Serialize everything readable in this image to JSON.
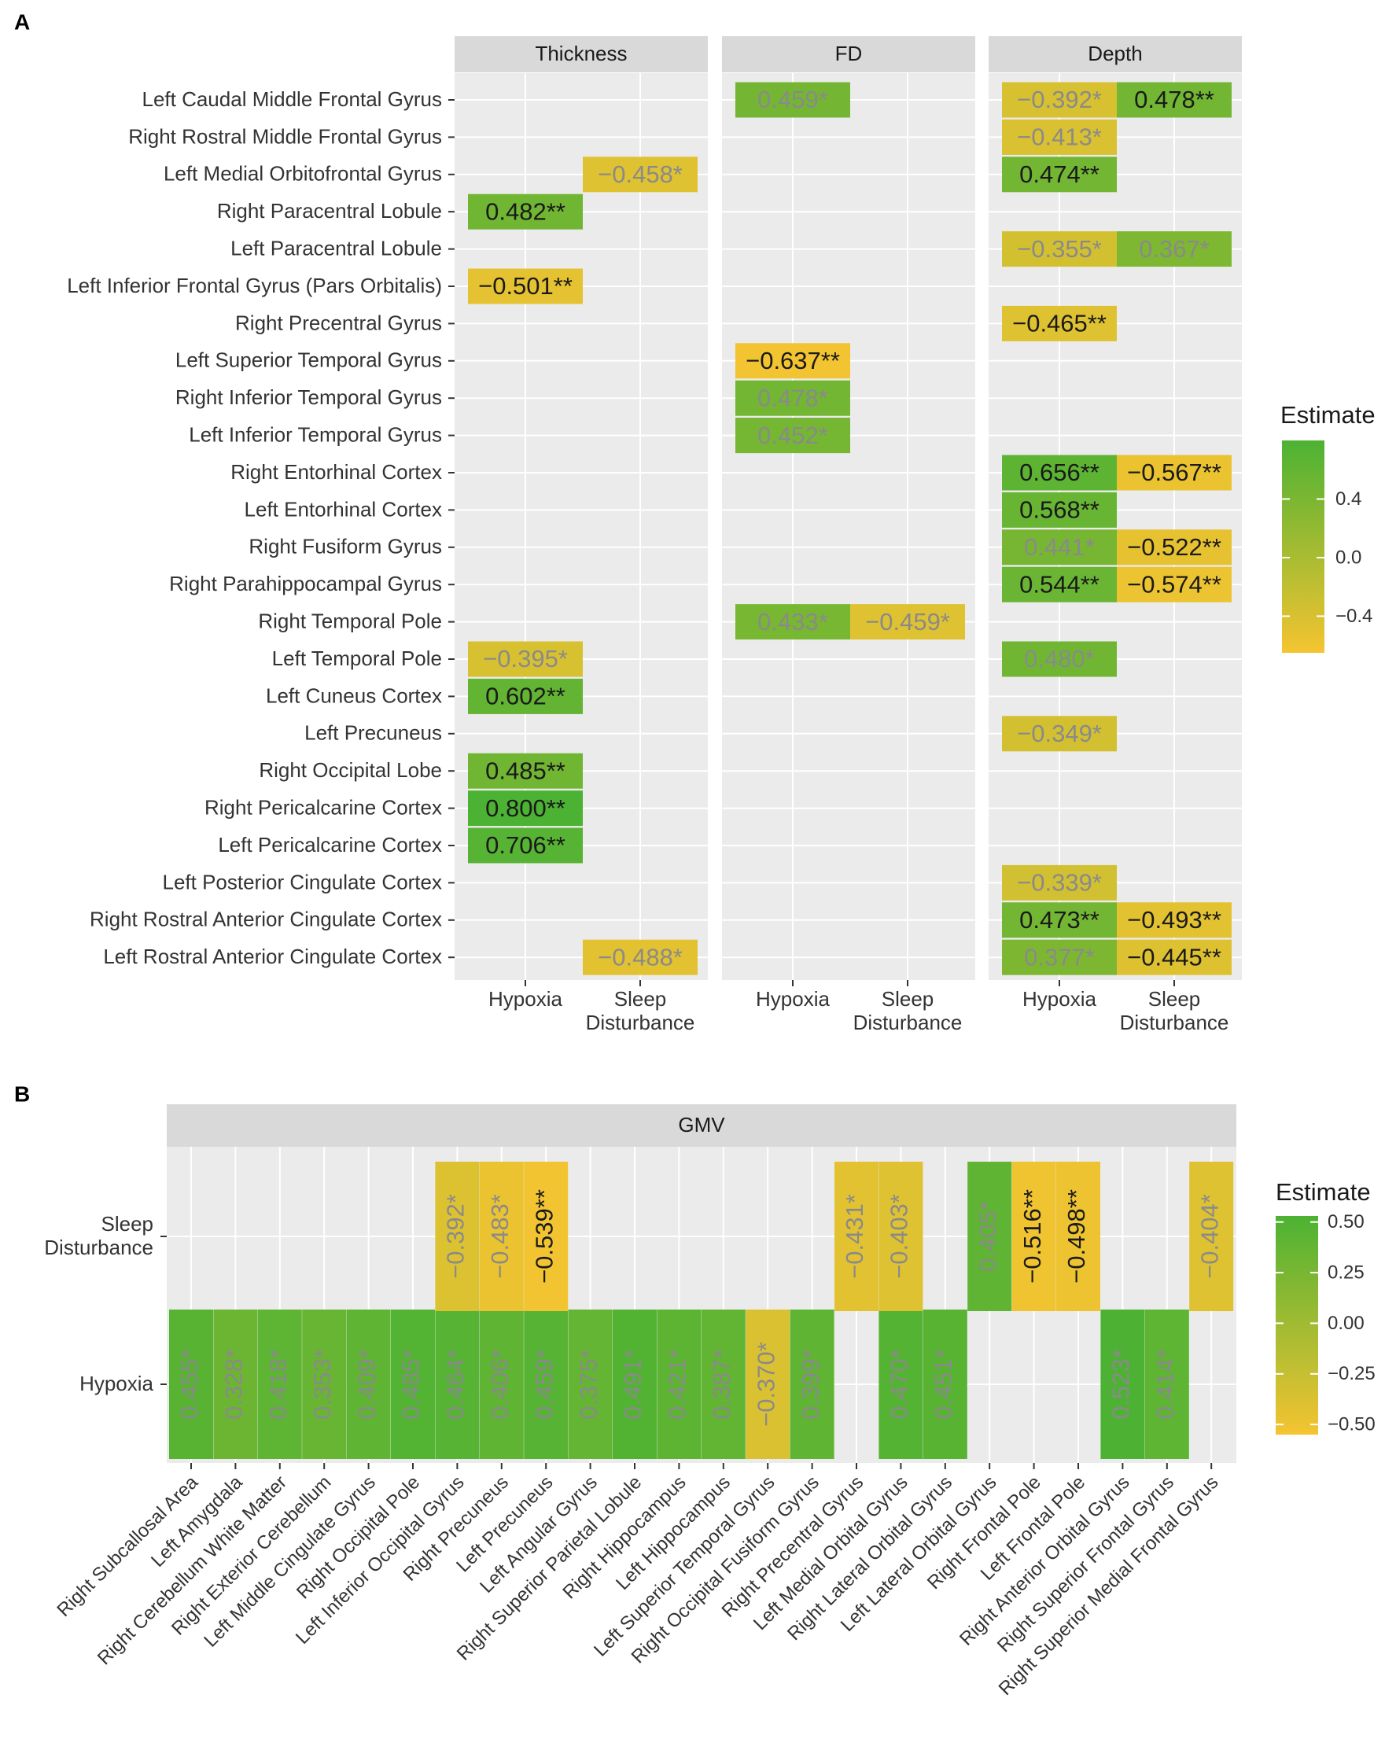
{
  "chart_data": [
    {
      "type": "heatmap",
      "panel_letter": "A",
      "facets": [
        "Thickness",
        "FD",
        "Depth"
      ],
      "x_categories": [
        "Hypoxia",
        "Sleep Disturbance"
      ],
      "x_tick_lines": [
        [
          "Hypoxia"
        ],
        [
          "Sleep",
          "Disturbance"
        ]
      ],
      "y_categories": [
        "Left Caudal Middle Frontal Gyrus",
        "Right Rostral Middle Frontal Gyrus",
        "Left Medial Orbitofrontal Gyrus",
        "Right Paracentral Lobule",
        "Left Paracentral Lobule",
        "Left Inferior Frontal Gyrus (Pars Orbitalis)",
        "Right Precentral Gyrus",
        "Left Superior Temporal Gyrus",
        "Right Inferior Temporal Gyrus",
        "Left Inferior Temporal Gyrus",
        "Right Entorhinal Cortex",
        "Left Entorhinal Cortex",
        "Right Fusiform Gyrus",
        "Right Parahippocampal Gyrus",
        "Right Temporal Pole",
        "Left Temporal Pole",
        "Left Cuneus Cortex",
        "Left Precuneus",
        "Right Occipital Lobe",
        "Right Pericalcarine Cortex",
        "Left Pericalcarine Cortex",
        "Left Posterior Cingulate Cortex",
        "Right Rostral Anterior Cingulate Cortex",
        "Left Rostral Anterior Cingulate Cortex"
      ],
      "cells": [
        {
          "facet": "Thickness",
          "x": "Hypoxia",
          "y": "Right Paracentral Lobule",
          "value": 0.482,
          "label": "0.482**"
        },
        {
          "facet": "Thickness",
          "x": "Hypoxia",
          "y": "Left Inferior Frontal Gyrus (Pars Orbitalis)",
          "value": -0.501,
          "label": "−0.501**"
        },
        {
          "facet": "Thickness",
          "x": "Hypoxia",
          "y": "Left Temporal Pole",
          "value": -0.395,
          "label": "−0.395*"
        },
        {
          "facet": "Thickness",
          "x": "Hypoxia",
          "y": "Left Cuneus Cortex",
          "value": 0.602,
          "label": "0.602**"
        },
        {
          "facet": "Thickness",
          "x": "Hypoxia",
          "y": "Right Occipital Lobe",
          "value": 0.485,
          "label": "0.485**"
        },
        {
          "facet": "Thickness",
          "x": "Hypoxia",
          "y": "Right Pericalcarine Cortex",
          "value": 0.8,
          "label": "0.800**"
        },
        {
          "facet": "Thickness",
          "x": "Hypoxia",
          "y": "Left Pericalcarine Cortex",
          "value": 0.706,
          "label": "0.706**"
        },
        {
          "facet": "Thickness",
          "x": "Sleep Disturbance",
          "y": "Left Medial Orbitofrontal Gyrus",
          "value": -0.458,
          "label": "−0.458*"
        },
        {
          "facet": "Thickness",
          "x": "Sleep Disturbance",
          "y": "Left Rostral Anterior Cingulate Cortex",
          "value": -0.488,
          "label": "−0.488*"
        },
        {
          "facet": "FD",
          "x": "Hypoxia",
          "y": "Left Caudal Middle Frontal Gyrus",
          "value": 0.459,
          "label": "0.459*"
        },
        {
          "facet": "FD",
          "x": "Hypoxia",
          "y": "Left Superior Temporal Gyrus",
          "value": -0.637,
          "label": "−0.637**"
        },
        {
          "facet": "FD",
          "x": "Hypoxia",
          "y": "Right Inferior Temporal Gyrus",
          "value": 0.478,
          "label": "0.478*"
        },
        {
          "facet": "FD",
          "x": "Hypoxia",
          "y": "Left Inferior Temporal Gyrus",
          "value": 0.452,
          "label": "0.452*"
        },
        {
          "facet": "FD",
          "x": "Hypoxia",
          "y": "Right Temporal Pole",
          "value": 0.433,
          "label": "0.433*"
        },
        {
          "facet": "FD",
          "x": "Sleep Disturbance",
          "y": "Right Temporal Pole",
          "value": -0.459,
          "label": "−0.459*"
        },
        {
          "facet": "Depth",
          "x": "Hypoxia",
          "y": "Left Caudal Middle Frontal Gyrus",
          "value": -0.392,
          "label": "−0.392*"
        },
        {
          "facet": "Depth",
          "x": "Hypoxia",
          "y": "Right Rostral Middle Frontal Gyrus",
          "value": -0.413,
          "label": "−0.413*"
        },
        {
          "facet": "Depth",
          "x": "Hypoxia",
          "y": "Left Medial Orbitofrontal Gyrus",
          "value": 0.474,
          "label": "0.474**"
        },
        {
          "facet": "Depth",
          "x": "Hypoxia",
          "y": "Left Paracentral Lobule",
          "value": -0.355,
          "label": "−0.355*"
        },
        {
          "facet": "Depth",
          "x": "Hypoxia",
          "y": "Right Precentral Gyrus",
          "value": -0.465,
          "label": "−0.465**"
        },
        {
          "facet": "Depth",
          "x": "Hypoxia",
          "y": "Right Entorhinal Cortex",
          "value": 0.656,
          "label": "0.656**"
        },
        {
          "facet": "Depth",
          "x": "Hypoxia",
          "y": "Left Entorhinal Cortex",
          "value": 0.568,
          "label": "0.568**"
        },
        {
          "facet": "Depth",
          "x": "Hypoxia",
          "y": "Right Fusiform Gyrus",
          "value": 0.441,
          "label": "0.441*"
        },
        {
          "facet": "Depth",
          "x": "Hypoxia",
          "y": "Right Parahippocampal Gyrus",
          "value": 0.544,
          "label": "0.544**"
        },
        {
          "facet": "Depth",
          "x": "Hypoxia",
          "y": "Left Temporal Pole",
          "value": 0.48,
          "label": "0.480*"
        },
        {
          "facet": "Depth",
          "x": "Hypoxia",
          "y": "Left Precuneus",
          "value": -0.349,
          "label": "−0.349*"
        },
        {
          "facet": "Depth",
          "x": "Hypoxia",
          "y": "Left Posterior Cingulate Cortex",
          "value": -0.339,
          "label": "−0.339*"
        },
        {
          "facet": "Depth",
          "x": "Hypoxia",
          "y": "Right Rostral Anterior Cingulate Cortex",
          "value": 0.473,
          "label": "0.473**"
        },
        {
          "facet": "Depth",
          "x": "Hypoxia",
          "y": "Left Rostral Anterior Cingulate Cortex",
          "value": 0.377,
          "label": "0.377*"
        },
        {
          "facet": "Depth",
          "x": "Sleep Disturbance",
          "y": "Left Caudal Middle Frontal Gyrus",
          "value": 0.478,
          "label": "0.478**"
        },
        {
          "facet": "Depth",
          "x": "Sleep Disturbance",
          "y": "Left Paracentral Lobule",
          "value": 0.367,
          "label": "0.367*"
        },
        {
          "facet": "Depth",
          "x": "Sleep Disturbance",
          "y": "Right Entorhinal Cortex",
          "value": -0.567,
          "label": "−0.567**"
        },
        {
          "facet": "Depth",
          "x": "Sleep Disturbance",
          "y": "Right Fusiform Gyrus",
          "value": -0.522,
          "label": "−0.522**"
        },
        {
          "facet": "Depth",
          "x": "Sleep Disturbance",
          "y": "Right Parahippocampal Gyrus",
          "value": -0.574,
          "label": "−0.574**"
        },
        {
          "facet": "Depth",
          "x": "Sleep Disturbance",
          "y": "Right Rostral Anterior Cingulate Cortex",
          "value": -0.493,
          "label": "−0.493**"
        },
        {
          "facet": "Depth",
          "x": "Sleep Disturbance",
          "y": "Left Rostral Anterior Cingulate Cortex",
          "value": -0.445,
          "label": "−0.445**"
        }
      ],
      "legend": {
        "title": "Estimate",
        "ticks": [
          0.4,
          0.0,
          -0.4
        ],
        "tick_labels": [
          "0.4",
          "0.0",
          "−0.4"
        ],
        "range": [
          -0.65,
          0.8
        ]
      }
    },
    {
      "type": "heatmap",
      "panel_letter": "B",
      "facets": [
        "GMV"
      ],
      "y_categories": [
        "Sleep Disturbance",
        "Hypoxia"
      ],
      "y_tick_lines": [
        [
          "Sleep",
          "Disturbance"
        ],
        [
          "Hypoxia"
        ]
      ],
      "x_categories": [
        "Right Subcallosal Area",
        "Left Amygdala",
        "Right Cerebellum White Matter",
        "Right Exterior Cerebellum",
        "Left Middle Cingulate Gyrus",
        "Right Occipital Pole",
        "Left Inferior Occipital Gyrus",
        "Right Precuneus",
        "Left Precuneus",
        "Left Angular Gyrus",
        "Right Superior Parietal Lobule",
        "Right Hippocampus",
        "Left Hippocampus",
        "Left Superior Temporal Gyrus",
        "Right Occipital Fusiform Gyrus",
        "Right Precentral Gyrus",
        "Left Medial Orbital Gyrus",
        "Right Lateral Orbital Gyrus",
        "Left Lateral Orbital Gyrus",
        "Right Frontal Pole",
        "Left Frontal Pole",
        "Right Anterior Orbital Gyrus",
        "Right Superior Frontal Gyrus",
        "Right Superior Medial Frontal Gyrus"
      ],
      "cells": [
        {
          "x": "Right Subcallosal Area",
          "y": "Hypoxia",
          "value": 0.455,
          "label": "0.455*"
        },
        {
          "x": "Left Amygdala",
          "y": "Hypoxia",
          "value": 0.328,
          "label": "0.328*"
        },
        {
          "x": "Right Cerebellum White Matter",
          "y": "Hypoxia",
          "value": 0.418,
          "label": "0.418*"
        },
        {
          "x": "Right Exterior Cerebellum",
          "y": "Hypoxia",
          "value": 0.353,
          "label": "0.353*"
        },
        {
          "x": "Left Middle Cingulate Gyrus",
          "y": "Hypoxia",
          "value": 0.409,
          "label": "0.409*"
        },
        {
          "x": "Right Occipital Pole",
          "y": "Hypoxia",
          "value": 0.485,
          "label": "0.485*"
        },
        {
          "x": "Left Inferior Occipital Gyrus",
          "y": "Hypoxia",
          "value": 0.464,
          "label": "0.464*"
        },
        {
          "x": "Right Precuneus",
          "y": "Hypoxia",
          "value": 0.406,
          "label": "0.406*"
        },
        {
          "x": "Left Precuneus",
          "y": "Hypoxia",
          "value": 0.459,
          "label": "0.459*"
        },
        {
          "x": "Left Angular Gyrus",
          "y": "Hypoxia",
          "value": 0.375,
          "label": "0.375*"
        },
        {
          "x": "Right Superior Parietal Lobule",
          "y": "Hypoxia",
          "value": 0.491,
          "label": "0.491*"
        },
        {
          "x": "Right Hippocampus",
          "y": "Hypoxia",
          "value": 0.421,
          "label": "0.421*"
        },
        {
          "x": "Left Hippocampus",
          "y": "Hypoxia",
          "value": 0.387,
          "label": "0.387*"
        },
        {
          "x": "Left Superior Temporal Gyrus",
          "y": "Hypoxia",
          "value": -0.37,
          "label": "−0.370*"
        },
        {
          "x": "Right Occipital Fusiform Gyrus",
          "y": "Hypoxia",
          "value": 0.399,
          "label": "0.399*"
        },
        {
          "x": "Left Medial Orbital Gyrus",
          "y": "Hypoxia",
          "value": 0.47,
          "label": "0.470*"
        },
        {
          "x": "Right Lateral Orbital Gyrus",
          "y": "Hypoxia",
          "value": 0.451,
          "label": "0.451*"
        },
        {
          "x": "Right Anterior Orbital Gyrus",
          "y": "Hypoxia",
          "value": 0.523,
          "label": "0.523*"
        },
        {
          "x": "Right Superior Frontal Gyrus",
          "y": "Hypoxia",
          "value": 0.414,
          "label": "0.414*"
        },
        {
          "x": "Left Inferior Occipital Gyrus",
          "y": "Sleep Disturbance",
          "value": -0.392,
          "label": "−0.392*"
        },
        {
          "x": "Right Precuneus",
          "y": "Sleep Disturbance",
          "value": -0.483,
          "label": "−0.483*"
        },
        {
          "x": "Left Precuneus",
          "y": "Sleep Disturbance",
          "value": -0.539,
          "label": "−0.539**"
        },
        {
          "x": "Right Precentral Gyrus",
          "y": "Sleep Disturbance",
          "value": -0.431,
          "label": "−0.431*"
        },
        {
          "x": "Left Medial Orbital Gyrus",
          "y": "Sleep Disturbance",
          "value": -0.403,
          "label": "−0.403*"
        },
        {
          "x": "Left Lateral Orbital Gyrus",
          "y": "Sleep Disturbance",
          "value": 0.405,
          "label": "0.405*"
        },
        {
          "x": "Right Frontal Pole",
          "y": "Sleep Disturbance",
          "value": -0.516,
          "label": "−0.516**"
        },
        {
          "x": "Left Frontal Pole",
          "y": "Sleep Disturbance",
          "value": -0.498,
          "label": "−0.498**"
        },
        {
          "x": "Right Superior Medial Frontal Gyrus",
          "y": "Sleep Disturbance",
          "value": -0.404,
          "label": "−0.404*"
        }
      ],
      "legend": {
        "title": "Estimate",
        "ticks": [
          0.5,
          0.25,
          0.0,
          -0.25,
          -0.5
        ],
        "tick_labels": [
          "0.50",
          "0.25",
          "0.00",
          "−0.25",
          "−0.50"
        ],
        "range": [
          -0.55,
          0.53
        ]
      }
    }
  ],
  "colors": {
    "panel_background": "#ebebeb",
    "strip_background": "#d9d9d9",
    "grid": "#ffffff",
    "low": "#f5c431",
    "high": "#4cb233",
    "text": "#1a1a1a",
    "single_star_text": "#8a8a8a"
  }
}
